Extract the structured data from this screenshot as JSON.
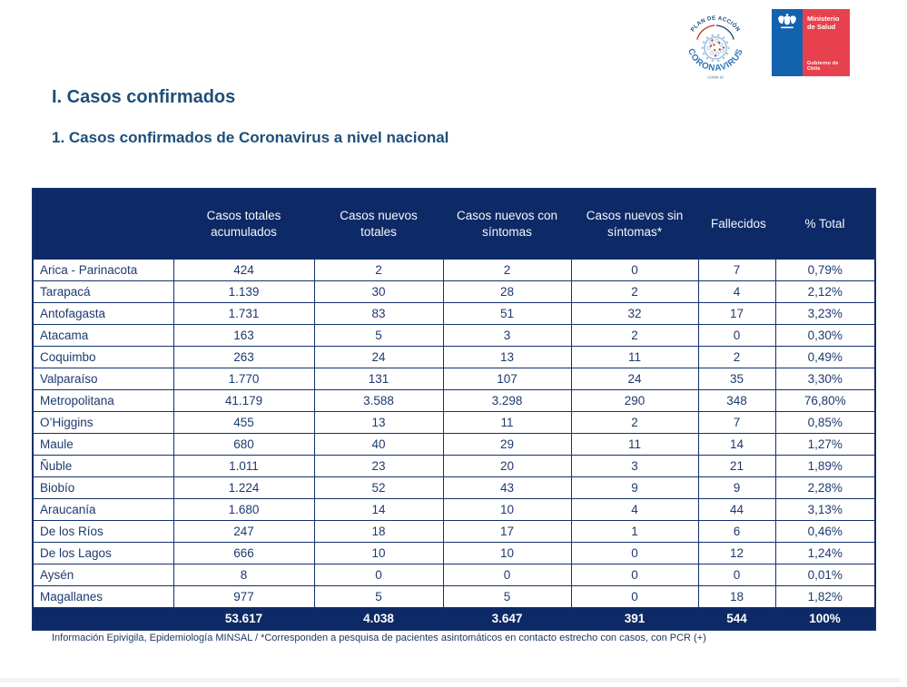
{
  "page": {
    "title": "I. Casos confirmados",
    "section_title": "1. Casos confirmados de Coronavirus a nivel nacional",
    "footnote": "Información Epivigila, Epidemiología MINSAL / *Corresponden a pesquisa de pacientes asintomáticos en contacto estrecho con casos, con PCR (+)"
  },
  "logos": {
    "plan_de_accion": {
      "arc_top": "PLAN DE ACCIÓN",
      "arc_bottom": "CORONAVIRUS",
      "caption": "COVID-19"
    },
    "ministerio": {
      "name": "Ministerio de Salud",
      "government": "Gobierno de Chile"
    }
  },
  "colors": {
    "header_navy": "#0d2a66",
    "cell_text": "#1d3a6e",
    "title_blue": "#1f4e79",
    "logo_blue": "#2e75b6",
    "flag_blue": "#1262ad",
    "flag_red": "#e8414e"
  },
  "chart_data": {
    "type": "table",
    "columns": [
      "",
      "Casos totales acumulados",
      "Casos nuevos totales",
      "Casos nuevos con síntomas",
      "Casos nuevos sin síntomas*",
      "Fallecidos",
      "% Total"
    ],
    "rows": [
      [
        "Arica - Parinacota",
        "424",
        "2",
        "2",
        "0",
        "7",
        "0,79%"
      ],
      [
        "Tarapacá",
        "1.139",
        "30",
        "28",
        "2",
        "4",
        "2,12%"
      ],
      [
        "Antofagasta",
        "1.731",
        "83",
        "51",
        "32",
        "17",
        "3,23%"
      ],
      [
        "Atacama",
        "163",
        "5",
        "3",
        "2",
        "0",
        "0,30%"
      ],
      [
        "Coquimbo",
        "263",
        "24",
        "13",
        "11",
        "2",
        "0,49%"
      ],
      [
        "Valparaíso",
        "1.770",
        "131",
        "107",
        "24",
        "35",
        "3,30%"
      ],
      [
        "Metropolitana",
        "41.179",
        "3.588",
        "3.298",
        "290",
        "348",
        "76,80%"
      ],
      [
        "O’Higgins",
        "455",
        "13",
        "11",
        "2",
        "7",
        "0,85%"
      ],
      [
        "Maule",
        "680",
        "40",
        "29",
        "11",
        "14",
        "1,27%"
      ],
      [
        "Ñuble",
        "1.011",
        "23",
        "20",
        "3",
        "21",
        "1,89%"
      ],
      [
        "Biobío",
        "1.224",
        "52",
        "43",
        "9",
        "9",
        "2,28%"
      ],
      [
        "Araucanía",
        "1.680",
        "14",
        "10",
        "4",
        "44",
        "3,13%"
      ],
      [
        "De los Ríos",
        "247",
        "18",
        "17",
        "1",
        "6",
        "0,46%"
      ],
      [
        "De los Lagos",
        "666",
        "10",
        "10",
        "0",
        "12",
        "1,24%"
      ],
      [
        "Aysén",
        "8",
        "0",
        "0",
        "0",
        "0",
        "0,01%"
      ],
      [
        "Magallanes",
        "977",
        "5",
        "5",
        "0",
        "18",
        "1,82%"
      ]
    ],
    "total_row": [
      "",
      "53.617",
      "4.038",
      "3.647",
      "391",
      "544",
      "100%"
    ]
  }
}
